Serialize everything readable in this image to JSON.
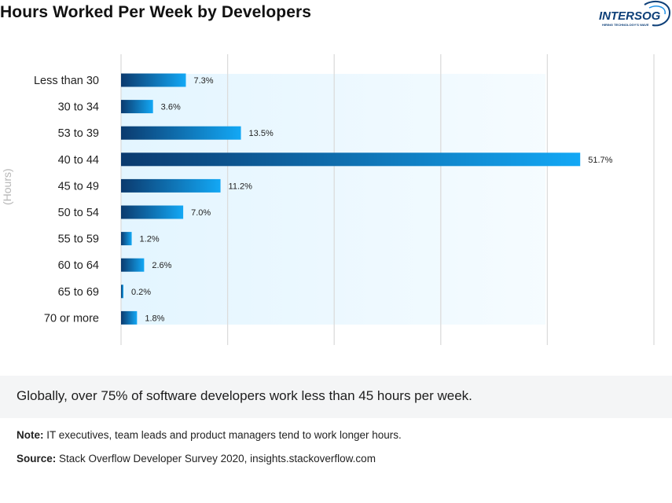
{
  "title": "Hours Worked Per Week by Developers",
  "logo": {
    "name": "INTERSOG",
    "tagline": "HIRING TECHNOLOGY'S WAVE"
  },
  "colors": {
    "bar_dark": "#0b3a6e",
    "bar_light": "#13a8f5",
    "band": "#e3f5ff",
    "grid": "#dcdcdc",
    "summary_bg": "#f4f5f6"
  },
  "chart_data": {
    "type": "bar",
    "orientation": "horizontal",
    "ylabel": "(Hours)",
    "xlabel": "",
    "xlim": [
      0,
      60
    ],
    "grid": true,
    "legend": "none",
    "categories": [
      "Less than 30",
      "30 to 34",
      "53 to 39",
      "40 to 44",
      "45 to 49",
      "50 to 54",
      "55 to 59",
      "60 to 64",
      "65 to 69",
      "70 or more"
    ],
    "values": [
      7.3,
      3.6,
      13.5,
      51.7,
      11.2,
      7.0,
      1.2,
      2.6,
      0.2,
      1.8
    ],
    "value_labels": [
      "7.3%",
      "3.6%",
      "13.5%",
      "51.7%",
      "11.2%",
      "7.0%",
      "1.2%",
      "2.6%",
      "0.2%",
      "1.8%"
    ]
  },
  "summary": "Globally, over 75% of software developers work less than 45 hours per week.",
  "note": {
    "label": "Note:",
    "text": " IT executives, team leads and product managers tend to work longer hours."
  },
  "source": {
    "label": "Source:",
    "text": " Stack Overflow Developer Survey 2020, insights.stackoverflow.com"
  }
}
